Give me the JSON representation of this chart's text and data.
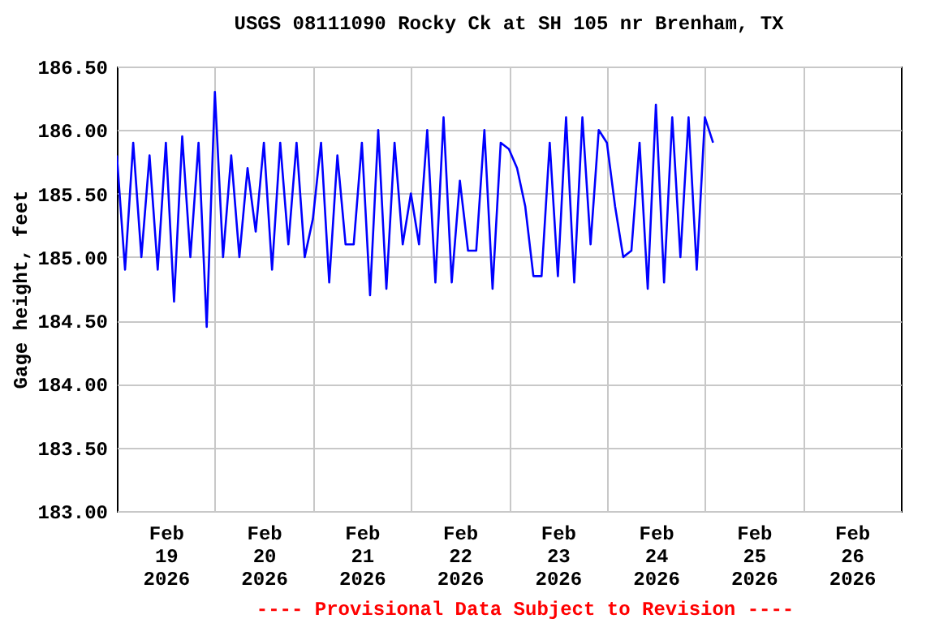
{
  "chart_data": {
    "type": "line",
    "title": "USGS 08111090 Rocky Ck at SH 105 nr Brenham, TX",
    "ylabel": "Gage height, feet",
    "annotations": [
      "---- Provisional Data Subject to Revision ----"
    ],
    "x": [
      "2026-02-19T00:00",
      "2026-02-19T02:00",
      "2026-02-19T04:00",
      "2026-02-19T06:00",
      "2026-02-19T08:00",
      "2026-02-19T10:00",
      "2026-02-19T12:00",
      "2026-02-19T14:00",
      "2026-02-19T16:00",
      "2026-02-19T18:00",
      "2026-02-19T20:00",
      "2026-02-19T22:00",
      "2026-02-20T00:00",
      "2026-02-20T02:00",
      "2026-02-20T04:00",
      "2026-02-20T06:00",
      "2026-02-20T08:00",
      "2026-02-20T10:00",
      "2026-02-20T12:00",
      "2026-02-20T14:00",
      "2026-02-20T16:00",
      "2026-02-20T18:00",
      "2026-02-20T20:00",
      "2026-02-20T22:00",
      "2026-02-21T00:00",
      "2026-02-21T02:00",
      "2026-02-21T04:00",
      "2026-02-21T06:00",
      "2026-02-21T08:00",
      "2026-02-21T10:00",
      "2026-02-21T12:00",
      "2026-02-21T14:00",
      "2026-02-21T16:00",
      "2026-02-21T18:00",
      "2026-02-21T20:00",
      "2026-02-21T22:00",
      "2026-02-22T00:00",
      "2026-02-22T02:00",
      "2026-02-22T04:00",
      "2026-02-22T06:00",
      "2026-02-22T08:00",
      "2026-02-22T10:00",
      "2026-02-22T12:00",
      "2026-02-22T14:00",
      "2026-02-22T16:00",
      "2026-02-22T18:00",
      "2026-02-22T20:00",
      "2026-02-22T22:00",
      "2026-02-23T00:00",
      "2026-02-23T02:00",
      "2026-02-23T04:00",
      "2026-02-23T06:00",
      "2026-02-23T08:00",
      "2026-02-23T10:00",
      "2026-02-23T12:00",
      "2026-02-23T14:00",
      "2026-02-23T16:00",
      "2026-02-23T18:00",
      "2026-02-23T20:00",
      "2026-02-23T22:00",
      "2026-02-24T00:00",
      "2026-02-24T02:00",
      "2026-02-24T04:00",
      "2026-02-24T06:00",
      "2026-02-24T08:00",
      "2026-02-24T10:00",
      "2026-02-24T12:00",
      "2026-02-24T14:00",
      "2026-02-24T16:00",
      "2026-02-24T18:00",
      "2026-02-24T20:00",
      "2026-02-24T22:00",
      "2026-02-25T00:00",
      "2026-02-25T02:00"
    ],
    "series": [
      {
        "color": "#0000ff",
        "values": [
          185.8,
          184.9,
          185.9,
          185.0,
          185.8,
          184.9,
          185.9,
          184.65,
          185.95,
          185.0,
          185.9,
          184.45,
          186.3,
          185.0,
          185.8,
          185.0,
          185.7,
          185.2,
          185.9,
          184.9,
          185.9,
          185.1,
          185.9,
          185.0,
          185.3,
          185.9,
          184.8,
          185.8,
          185.1,
          185.1,
          185.9,
          184.7,
          186.0,
          184.75,
          185.9,
          185.1,
          185.5,
          185.1,
          186.0,
          184.8,
          186.1,
          184.8,
          185.6,
          185.05,
          185.05,
          186.0,
          184.75,
          185.9,
          185.85,
          185.7,
          185.4,
          184.85,
          184.85,
          185.9,
          184.85,
          186.1,
          184.8,
          186.1,
          185.1,
          186.0,
          185.9,
          185.4,
          185.0,
          185.05,
          185.9,
          184.75,
          186.2,
          184.8,
          186.1,
          185.0,
          186.1,
          184.9,
          186.1,
          185.9
        ]
      }
    ],
    "xlim": [
      "2026-02-19T00:00",
      "2026-02-27T00:00"
    ],
    "xticks": [
      {
        "value": "2026-02-19T12:00",
        "label": "Feb 19 2026"
      },
      {
        "value": "2026-02-20T00:00",
        "label": null
      },
      {
        "value": "2026-02-20T12:00",
        "label": "Feb 20 2026"
      },
      {
        "value": "2026-02-21T00:00",
        "label": null
      },
      {
        "value": "2026-02-21T12:00",
        "label": "Feb 21 2026"
      },
      {
        "value": "2026-02-22T00:00",
        "label": null
      },
      {
        "value": "2026-02-22T12:00",
        "label": "Feb 22 2026"
      },
      {
        "value": "2026-02-23T00:00",
        "label": null
      },
      {
        "value": "2026-02-23T12:00",
        "label": "Feb 23 2026"
      },
      {
        "value": "2026-02-24T00:00",
        "label": null
      },
      {
        "value": "2026-02-24T12:00",
        "label": "Feb 24 2026"
      },
      {
        "value": "2026-02-25T00:00",
        "label": null
      },
      {
        "value": "2026-02-25T12:00",
        "label": "Feb 25 2026"
      },
      {
        "value": "2026-02-26T00:00",
        "label": null
      },
      {
        "value": "2026-02-26T12:00",
        "label": "Feb 26 2026"
      }
    ],
    "ylim": [
      183.0,
      186.5
    ],
    "yticks": [
      {
        "value": 183.0,
        "label": "183.00"
      },
      {
        "value": 183.5,
        "label": "183.50"
      },
      {
        "value": 184.0,
        "label": "184.00"
      },
      {
        "value": 184.5,
        "label": "184.50"
      },
      {
        "value": 185.0,
        "label": "185.00"
      },
      {
        "value": 185.5,
        "label": "185.50"
      },
      {
        "value": 186.0,
        "label": "186.00"
      },
      {
        "value": 186.5,
        "label": "186.50"
      }
    ],
    "grid": true,
    "line_style": "solid"
  }
}
